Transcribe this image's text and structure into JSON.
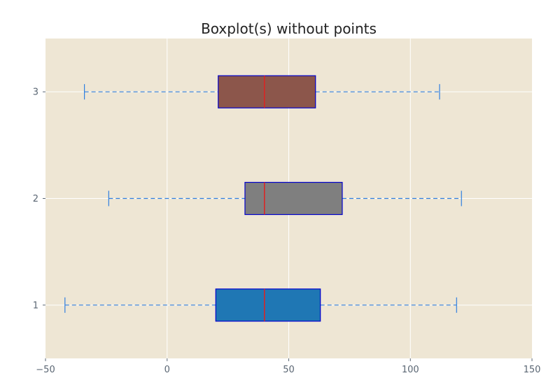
{
  "chart_data": {
    "type": "boxplot",
    "orientation": "horizontal",
    "title": "Boxplot(s) without points",
    "xlabel": "",
    "ylabel": "",
    "xlim": [
      -50,
      150
    ],
    "ylim": [
      0.5,
      3.5
    ],
    "x_ticks": [
      -50,
      0,
      50,
      100,
      150
    ],
    "x_tick_labels": [
      "−50",
      "0",
      "50",
      "100",
      "150"
    ],
    "y_ticks": [
      1,
      2,
      3
    ],
    "y_tick_labels": [
      "1",
      "2",
      "3"
    ],
    "grid": true,
    "show_outliers": false,
    "boxes": [
      {
        "position": 1,
        "whisker_low": -42,
        "q1": 20,
        "median": 40,
        "q3": 63,
        "whisker_high": 119,
        "color": "#1f77b4"
      },
      {
        "position": 2,
        "whisker_low": -24,
        "q1": 32,
        "median": 40,
        "q3": 72,
        "whisker_high": 121,
        "color": "#7f7f7f"
      },
      {
        "position": 3,
        "whisker_low": -34,
        "q1": 21,
        "median": 40,
        "q3": 61,
        "whisker_high": 112,
        "color": "#8c564b"
      }
    ],
    "colors": {
      "axes_background": "#eee6d4",
      "grid": "#ffffff",
      "box_edge": "#0000cc",
      "median_line": "#dd2222",
      "whisker": "#2f7fe0"
    }
  }
}
